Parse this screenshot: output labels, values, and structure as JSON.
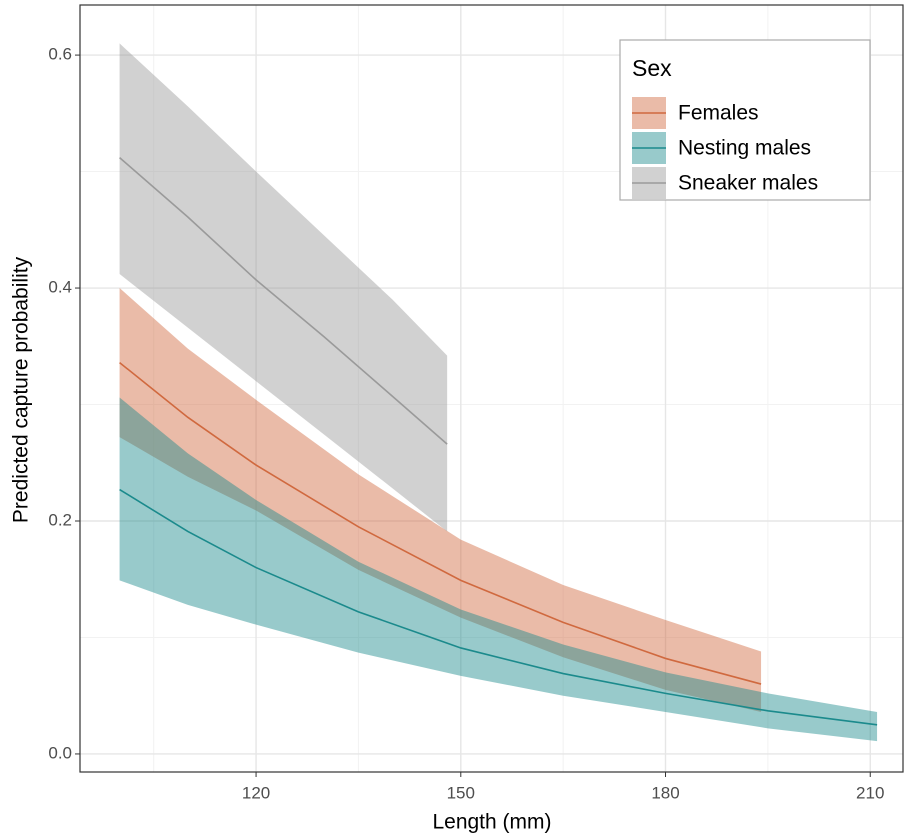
{
  "chart_data": {
    "type": "line_ribbon",
    "x_label": "Length (mm)",
    "y_label": "Predicted capture probability",
    "legend_title": "Sex",
    "legend_position": "top-right",
    "grid": true,
    "xlim": [
      94.2,
      214.8
    ],
    "ylim": [
      -0.0155,
      0.643
    ],
    "xticks": [
      120,
      150,
      180,
      210
    ],
    "yticks": [
      {
        "value": 0,
        "label": "0.0"
      },
      0.2,
      0.4,
      0.6
    ],
    "series": [
      {
        "name": "Females",
        "color": "#d0693f",
        "x": [
          100,
          110,
          120,
          135,
          150,
          165,
          180,
          194
        ],
        "values": [
          0.336,
          0.289,
          0.248,
          0.195,
          0.149,
          0.113,
          0.082,
          0.06
        ],
        "upper": [
          0.4,
          0.348,
          0.304,
          0.24,
          0.184,
          0.145,
          0.115,
          0.088
        ],
        "lower": [
          0.272,
          0.238,
          0.209,
          0.158,
          0.117,
          0.083,
          0.055,
          0.036
        ]
      },
      {
        "name": "Nesting males",
        "color": "#1b8a8c",
        "x": [
          100,
          110,
          120,
          135,
          150,
          165,
          180,
          195,
          211
        ],
        "values": [
          0.227,
          0.191,
          0.16,
          0.122,
          0.091,
          0.069,
          0.052,
          0.037,
          0.025
        ],
        "upper": [
          0.306,
          0.258,
          0.218,
          0.165,
          0.124,
          0.094,
          0.07,
          0.052,
          0.036
        ],
        "lower": [
          0.149,
          0.128,
          0.111,
          0.087,
          0.067,
          0.05,
          0.036,
          0.022,
          0.011
        ]
      },
      {
        "name": "Sneaker males",
        "color": "#9a9a9a",
        "x": [
          100,
          110,
          120,
          130,
          140,
          148
        ],
        "values": [
          0.512,
          0.461,
          0.407,
          0.358,
          0.307,
          0.266
        ],
        "upper": [
          0.61,
          0.556,
          0.5,
          0.445,
          0.39,
          0.342
        ],
        "lower": [
          0.412,
          0.366,
          0.32,
          0.274,
          0.228,
          0.191
        ]
      }
    ]
  }
}
